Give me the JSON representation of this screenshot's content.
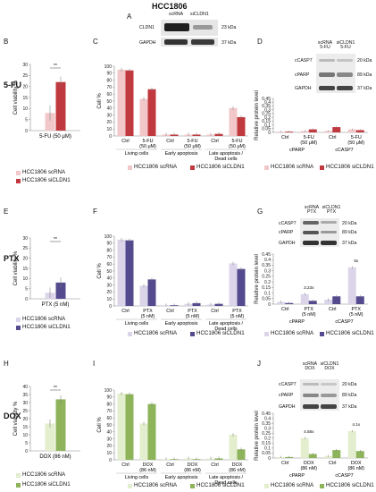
{
  "header": {
    "title": "HCC1806"
  },
  "rows": [
    {
      "label": "5-FU"
    },
    {
      "label": "PTX"
    },
    {
      "label": "DOX"
    }
  ],
  "colors": {
    "scrna_5fu": "#f2c7c9",
    "sicldn1_5fu": "#c0393e",
    "scrna_ptx": "#dcd5ea",
    "sicldn1_ptx": "#544a8e",
    "scrna_dox": "#e3eece",
    "sicldn1_dox": "#8db35b"
  },
  "panels": {
    "A": {
      "letter": "A",
      "lanes": [
        "scRNA",
        "siCLDN1"
      ],
      "bands": [
        {
          "name": "CLDN1",
          "kda": "23 kDa"
        },
        {
          "name": "GAPDH",
          "kda": "37 kDa"
        }
      ]
    },
    "B": {
      "letter": "B",
      "ylabel": "Cell viability %",
      "xlabel": "5-FU (50 μM)",
      "sig": "**",
      "legend": [
        "HCC1806 scRNA",
        "HCC1806 siCLDN1"
      ]
    },
    "C": {
      "letter": "C",
      "ylabel": "Cell %",
      "legend": [
        "HCC1806 scRNA",
        "HCC1806 siCLDN1"
      ]
    },
    "D": {
      "letter": "D",
      "ylabel": "Relative protein level",
      "lanes": [
        "scRNA 5-FU",
        "siCLDN1 5-FU"
      ],
      "bands": [
        {
          "name": "cCASP7",
          "kda": "20 kDa"
        },
        {
          "name": "cPARP",
          "kda": "89 kDa"
        },
        {
          "name": "GAPDH",
          "kda": "37 kDa"
        }
      ],
      "groups": [
        "cPARP",
        "cCASP7"
      ],
      "legend": [
        "HCC1806 scRNA",
        "HCC1806 siCLDN1"
      ]
    },
    "E": {
      "letter": "E",
      "ylabel": "Cell viability %",
      "xlabel": "PTX (5 nM)",
      "sig": "**",
      "legend": [
        "HCC1806 scRNA",
        "HCC1806 siCLDN1"
      ]
    },
    "F": {
      "letter": "F",
      "ylabel": "Cell %",
      "legend": [
        "HCC1806 scRNA",
        "HCC1806 siCLDN1"
      ]
    },
    "G": {
      "letter": "G",
      "ylabel": "Relative protein level",
      "lanes": [
        "scRNA PTX",
        "siCLDN1 PTX"
      ],
      "bands": [
        {
          "name": "cCASP7",
          "kda": "20 kDa"
        },
        {
          "name": "cPARP",
          "kda": "89 kDa"
        },
        {
          "name": "GAPDH",
          "kda": "37 kDa"
        }
      ],
      "groups": [
        "cPARP",
        "cCASP7"
      ],
      "annotations": [
        "3.23x",
        "5x"
      ],
      "legend": [
        "HCC1806 scRNA",
        "HCC1806 siCLDN1"
      ]
    },
    "H": {
      "letter": "H",
      "ylabel": "Cell viability %",
      "xlabel": "DOX (86 nM)",
      "sig": "**",
      "legend": [
        "HCC1806 scRNA",
        "HCC1806 siCLDN1"
      ]
    },
    "I": {
      "letter": "I",
      "ylabel": "Cell %",
      "legend": [
        "HCC1806 scRNA",
        "HCC1806 siCLDN1"
      ]
    },
    "J": {
      "letter": "J",
      "ylabel": "Relative protein level",
      "lanes": [
        "scRNA DOX",
        "siCLDN1 DOX"
      ],
      "bands": [
        {
          "name": "cCASP7",
          "kda": "20 kDa"
        },
        {
          "name": "cPARP",
          "kda": "89 kDa"
        },
        {
          "name": "GAPDH",
          "kda": "37 kDa"
        }
      ],
      "groups": [
        "cPARP",
        "cCASP7"
      ],
      "annotations": [
        "4.58x",
        "4.1x"
      ],
      "legend": [
        "HCC1806 scRNA",
        "HCC1806 siCLDN1"
      ]
    }
  },
  "chart_data": [
    {
      "id": "B",
      "type": "bar",
      "categories": [
        "5-FU (50 μM)"
      ],
      "series": [
        {
          "name": "HCC1806 scRNA",
          "values": [
            8
          ]
        },
        {
          "name": "HCC1806 siCLDN1",
          "values": [
            22
          ]
        }
      ],
      "ylim": [
        0,
        30
      ],
      "yticks": [
        0,
        5,
        10,
        15,
        20,
        25,
        30
      ],
      "errors": [
        [
          3.5
        ],
        [
          2.5
        ]
      ],
      "ylabel": "Cell viability %"
    },
    {
      "id": "C",
      "type": "bar",
      "categories": [
        "Ctrl|Living cells",
        "5-FU (50 μM)|Living cells",
        "Ctrl|Early apoptosis",
        "5-FU (50 μM)|Early apoptosis",
        "Ctrl|Late apoptosis / Dead cells",
        "5-FU (50 μM)|Late apoptosis / Dead cells"
      ],
      "series": [
        {
          "name": "HCC1806 scRNA",
          "values": [
            95,
            53,
            2,
            2,
            2,
            40
          ]
        },
        {
          "name": "HCC1806 siCLDN1",
          "values": [
            94,
            67,
            2,
            2,
            3,
            27
          ]
        }
      ],
      "ylim": [
        0,
        100
      ],
      "yticks": [
        0,
        10,
        20,
        30,
        40,
        50,
        60,
        70,
        80,
        90,
        100
      ],
      "ylabel": "Cell %"
    },
    {
      "id": "D",
      "type": "bar",
      "categories": [
        "Ctrl",
        "5-FU (50 μM)",
        "Ctrl",
        "5-FU (50 μM)"
      ],
      "series": [
        {
          "name": "HCC1806 scRNA",
          "values": [
            0.01,
            0.02,
            0.02,
            0.04
          ]
        },
        {
          "name": "HCC1806 siCLDN1",
          "values": [
            0.01,
            0.04,
            0.07,
            0.03
          ]
        }
      ],
      "ylim": [
        0,
        0.45
      ],
      "yticks": [
        0,
        0.05,
        0.1,
        0.15,
        0.2,
        0.25,
        0.3,
        0.35,
        0.4,
        0.45
      ],
      "ylabel": "Relative protein level"
    },
    {
      "id": "E",
      "type": "bar",
      "categories": [
        "PTX (5 nM)"
      ],
      "series": [
        {
          "name": "HCC1806 scRNA",
          "values": [
            3
          ]
        },
        {
          "name": "HCC1806 siCLDN1",
          "values": [
            8
          ]
        }
      ],
      "ylim": [
        0,
        30
      ],
      "yticks": [
        0,
        5,
        10,
        15,
        20,
        25,
        30
      ],
      "ylabel": "Cell viability %"
    },
    {
      "id": "F",
      "type": "bar",
      "categories": [
        "Ctrl|Living cells",
        "PTX (5 nM)|Living cells",
        "Ctrl|Early apoptosis",
        "PTX (5 nM)|Early apoptosis",
        "Ctrl|Late apoptosis / Dead cells",
        "PTX (5 nM)|Late apoptosis / Dead cells"
      ],
      "series": [
        {
          "name": "HCC1806 scRNA",
          "values": [
            95,
            29,
            1,
            3,
            2,
            61
          ]
        },
        {
          "name": "HCC1806 siCLDN1",
          "values": [
            94,
            38,
            1,
            4,
            3,
            53
          ]
        }
      ],
      "ylim": [
        0,
        100
      ],
      "yticks": [
        0,
        10,
        20,
        30,
        40,
        50,
        60,
        70,
        80,
        90,
        100
      ],
      "ylabel": "Cell %"
    },
    {
      "id": "G",
      "type": "bar",
      "categories": [
        "Ctrl",
        "PTX (5 nM)",
        "Ctrl",
        "PTX (5 nM)"
      ],
      "series": [
        {
          "name": "HCC1806 scRNA",
          "values": [
            0.02,
            0.09,
            0.04,
            0.33
          ]
        },
        {
          "name": "HCC1806 siCLDN1",
          "values": [
            0.01,
            0.03,
            0.07,
            0.07
          ]
        }
      ],
      "ylim": [
        0,
        0.45
      ],
      "yticks": [
        0,
        0.05,
        0.1,
        0.15,
        0.2,
        0.25,
        0.3,
        0.35,
        0.4,
        0.45
      ],
      "ylabel": "Relative protein level"
    },
    {
      "id": "H",
      "type": "bar",
      "categories": [
        "DOX (86 nM)"
      ],
      "series": [
        {
          "name": "HCC1806 scRNA",
          "values": [
            17
          ]
        },
        {
          "name": "HCC1806 siCLDN1",
          "values": [
            32
          ]
        }
      ],
      "ylim": [
        0,
        40
      ],
      "yticks": [
        0,
        5,
        10,
        15,
        20,
        25,
        30,
        35,
        40
      ],
      "ylabel": "Cell viability %"
    },
    {
      "id": "I",
      "type": "bar",
      "categories": [
        "Ctrl|Living cells",
        "DOX (86 nM)|Living cells",
        "Ctrl|Early apoptosis",
        "DOX (86 nM)|Early apoptosis",
        "Ctrl|Late apoptosis / Dead cells",
        "DOX (86 nM)|Late apoptosis / Dead cells"
      ],
      "series": [
        {
          "name": "HCC1806 scRNA",
          "values": [
            95,
            52,
            1,
            2,
            2,
            36
          ]
        },
        {
          "name": "HCC1806 siCLDN1",
          "values": [
            94,
            80,
            1,
            1,
            2,
            15
          ]
        }
      ],
      "ylim": [
        0,
        100
      ],
      "yticks": [
        0,
        10,
        20,
        30,
        40,
        50,
        60,
        70,
        80,
        90,
        100
      ],
      "ylabel": "Cell %"
    },
    {
      "id": "J",
      "type": "bar",
      "categories": [
        "Ctrl",
        "DOX (86 nM)",
        "Ctrl",
        "DOX (86 nM)"
      ],
      "series": [
        {
          "name": "HCC1806 scRNA",
          "values": [
            0.01,
            0.2,
            0.02,
            0.27
          ]
        },
        {
          "name": "HCC1806 siCLDN1",
          "values": [
            0.01,
            0.04,
            0.08,
            0.07
          ]
        }
      ],
      "ylim": [
        0,
        0.45
      ],
      "yticks": [
        0,
        0.05,
        0.1,
        0.15,
        0.2,
        0.25,
        0.3,
        0.35,
        0.4,
        0.45
      ],
      "ylabel": "Relative protein level"
    }
  ]
}
